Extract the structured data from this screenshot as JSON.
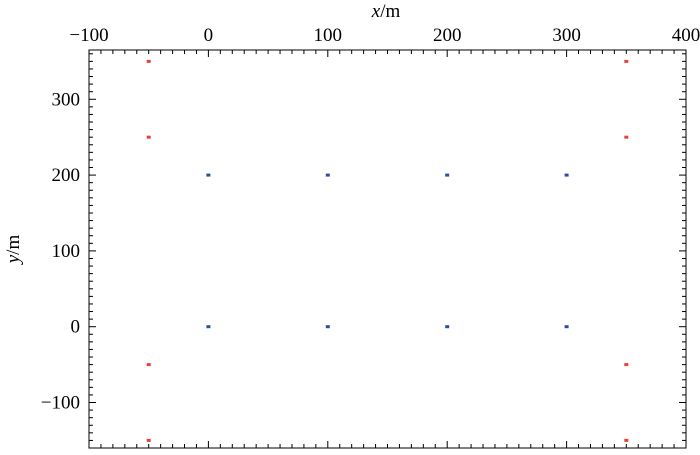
{
  "chart_data": {
    "type": "scatter",
    "title": "",
    "xlabel": "x/m",
    "xlabel_var": "x",
    "xlabel_unit": "/m",
    "ylabel": "y/m",
    "ylabel_var": "y",
    "ylabel_unit": "/m",
    "x_axis_position": "top",
    "xlim": [
      -100,
      400
    ],
    "ylim": [
      -160,
      365
    ],
    "xticks": [
      -100,
      0,
      100,
      200,
      300,
      400
    ],
    "xtick_labels": [
      "−100",
      "0",
      "100",
      "200",
      "300",
      "400"
    ],
    "yticks": [
      -100,
      0,
      100,
      200,
      300
    ],
    "ytick_labels": [
      "−100",
      "0",
      "100",
      "200",
      "300"
    ],
    "grid": false,
    "series": [
      {
        "color": "#e8413a",
        "points": [
          [
            -50,
            350
          ],
          [
            -50,
            250
          ],
          [
            -50,
            -50
          ],
          [
            -50,
            -150
          ],
          [
            350,
            350
          ],
          [
            350,
            250
          ],
          [
            350,
            -50
          ],
          [
            350,
            -150
          ]
        ]
      },
      {
        "color": "#2b4f9e",
        "points": [
          [
            0,
            200
          ],
          [
            100,
            200
          ],
          [
            200,
            200
          ],
          [
            300,
            200
          ],
          [
            0,
            0
          ],
          [
            100,
            0
          ],
          [
            200,
            0
          ],
          [
            300,
            0
          ]
        ]
      }
    ]
  }
}
